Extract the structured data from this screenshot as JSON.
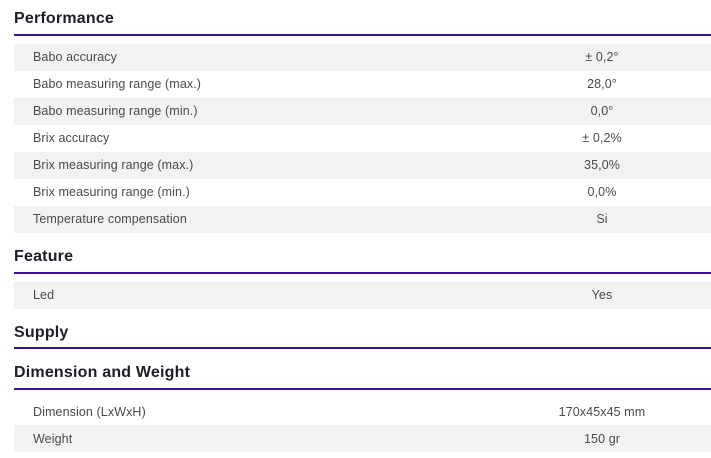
{
  "accent_color": "#3a0e96",
  "shaded_row_color": "#f2f2f2",
  "sections": [
    {
      "title": "Performance",
      "rows": [
        {
          "label": "Babo accuracy",
          "value": "± 0,2°",
          "shaded": true
        },
        {
          "label": "Babo measuring range (max.)",
          "value": "28,0°",
          "shaded": false
        },
        {
          "label": "Babo measuring range (min.)",
          "value": "0,0°",
          "shaded": true
        },
        {
          "label": "Brix accuracy",
          "value": "± 0,2%",
          "shaded": false
        },
        {
          "label": "Brix measuring range (max.)",
          "value": "35,0%",
          "shaded": true
        },
        {
          "label": "Brix measuring range (min.)",
          "value": "0,0%",
          "shaded": false
        },
        {
          "label": "Temperature compensation",
          "value": "Si",
          "shaded": true
        }
      ]
    },
    {
      "title": "Feature",
      "rows": [
        {
          "label": "Led",
          "value": "Yes",
          "shaded": true
        }
      ]
    },
    {
      "title": "Supply",
      "rows": []
    },
    {
      "title": "Dimension and Weight",
      "rows": [
        {
          "label": "Dimension (LxWxH)",
          "value": "170x45x45 mm",
          "shaded": false
        },
        {
          "label": "Weight",
          "value": "150 gr",
          "shaded": true
        }
      ]
    }
  ]
}
